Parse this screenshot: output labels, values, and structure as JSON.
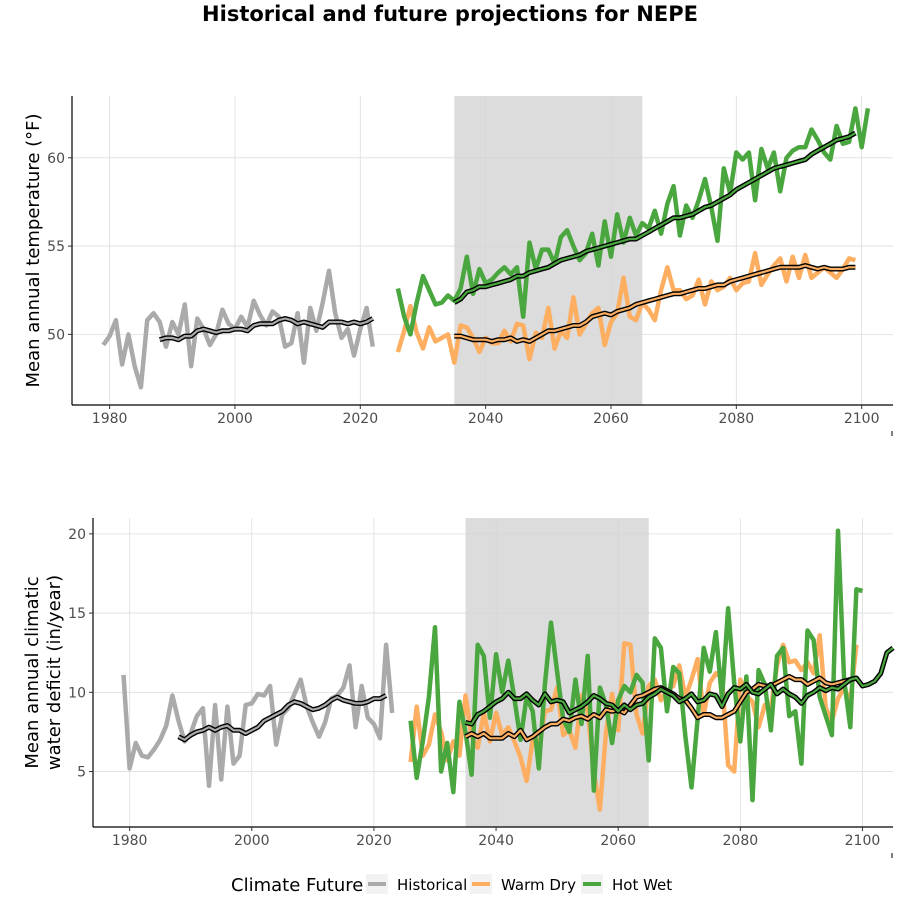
{
  "figure": {
    "title": "Historical and future projections for NEPE"
  },
  "legend": {
    "title": "Climate Future",
    "items": [
      {
        "label": "Historical",
        "color": "#aaaaaa"
      },
      {
        "label": "Warm Dry",
        "color": "#fdae61"
      },
      {
        "label": "Hot Wet",
        "color": "#4aa63e"
      }
    ]
  },
  "chart_data": [
    {
      "type": "line",
      "title": "",
      "xlabel": "",
      "ylabel": "Mean annual temperature (°F)",
      "xlim": [
        1974,
        2105
      ],
      "ylim": [
        46,
        63.5
      ],
      "xticks": [
        1980,
        2000,
        2020,
        2040,
        2060,
        2080,
        2100
      ],
      "yticks": [
        50,
        55,
        60
      ],
      "grid": true,
      "shaded_period": [
        2035,
        2065
      ],
      "series": [
        {
          "name": "Historical",
          "color": "#aaaaaa",
          "x_start": 1979,
          "values": [
            49.4,
            49.9,
            50.8,
            48.3,
            50.0,
            48.2,
            47.0,
            50.8,
            51.2,
            50.7,
            49.3,
            50.7,
            50.0,
            51.7,
            48.2,
            50.9,
            50.3,
            49.4,
            50.0,
            51.4,
            50.6,
            50.3,
            51.0,
            50.4,
            51.9,
            51.1,
            50.5,
            51.3,
            51.0,
            49.3,
            49.5,
            51.2,
            48.4,
            51.5,
            50.2,
            51.8,
            53.6,
            51.2,
            49.8,
            50.3,
            48.8,
            50.3,
            51.5,
            49.3
          ]
        },
        {
          "name": "Historical",
          "color": "#aaaaaa",
          "role": "moving-average",
          "x_start": 1988,
          "values": [
            49.7,
            49.8,
            49.8,
            49.7,
            49.9,
            49.9,
            50.2,
            50.3,
            50.2,
            50.1,
            50.2,
            50.2,
            50.3,
            50.3,
            50.2,
            50.5,
            50.6,
            50.6,
            50.6,
            50.8,
            50.9,
            50.8,
            50.6,
            50.7,
            50.6,
            50.5,
            50.4,
            50.7,
            50.7,
            50.7,
            50.6,
            50.7,
            50.6,
            50.7,
            50.9
          ]
        },
        {
          "name": "Warm Dry",
          "color": "#fdae61",
          "x_start": 2026,
          "values": [
            49.0,
            50.2,
            51.6,
            50.1,
            49.2,
            50.4,
            49.6,
            49.8,
            50.0,
            48.4,
            50.5,
            50.4,
            49.8,
            49.0,
            49.8,
            49.5,
            49.5,
            50.2,
            49.6,
            50.6,
            50.5,
            48.6,
            50.1,
            49.8,
            51.5,
            49.2,
            50.2,
            49.8,
            52.1,
            50.0,
            50.6,
            51.2,
            51.5,
            49.4,
            50.7,
            51.2,
            53.2,
            51.0,
            50.8,
            51.8,
            51.4,
            50.8,
            52.5,
            53.8,
            52.5,
            52.5,
            52.0,
            52.2,
            53.1,
            51.7,
            53.0,
            52.5,
            52.7,
            53.2,
            52.5,
            52.9,
            53.0,
            54.6,
            52.8,
            53.4,
            53.9,
            54.3,
            53.0,
            54.4,
            53.2,
            54.5,
            53.2,
            53.5,
            53.8,
            53.5,
            53.2,
            53.7,
            54.3,
            54.2
          ]
        },
        {
          "name": "Warm Dry",
          "color": "#fdae61",
          "role": "moving-average",
          "x_start": 2035,
          "values": [
            49.9,
            49.9,
            49.8,
            49.7,
            49.7,
            49.7,
            49.6,
            49.7,
            49.7,
            49.8,
            49.6,
            49.7,
            49.6,
            49.8,
            50.0,
            50.2,
            50.2,
            50.3,
            50.4,
            50.5,
            50.5,
            50.7,
            51.0,
            51.1,
            51.2,
            51.1,
            51.3,
            51.4,
            51.5,
            51.7,
            51.8,
            51.9,
            52.0,
            52.1,
            52.2,
            52.3,
            52.3,
            52.4,
            52.5,
            52.6,
            52.6,
            52.7,
            52.8,
            52.8,
            53.0,
            53.1,
            53.2,
            53.3,
            53.4,
            53.5,
            53.6,
            53.7,
            53.8,
            53.8,
            53.8,
            53.8,
            53.9,
            53.8,
            53.7,
            53.8,
            53.7,
            53.7,
            53.7,
            53.8,
            53.8
          ]
        },
        {
          "name": "Hot Wet",
          "color": "#4aa63e",
          "x_start": 2026,
          "values": [
            52.6,
            51.0,
            50.0,
            51.8,
            53.3,
            52.5,
            51.7,
            51.8,
            52.2,
            51.9,
            52.6,
            54.4,
            52.3,
            53.7,
            52.9,
            53.1,
            53.5,
            53.8,
            53.4,
            53.8,
            51.0,
            55.2,
            53.7,
            54.8,
            54.8,
            54.0,
            55.5,
            55.9,
            55.0,
            54.2,
            54.6,
            55.7,
            53.9,
            56.4,
            54.4,
            56.8,
            55.2,
            56.6,
            55.6,
            56.3,
            56.0,
            57.0,
            55.7,
            57.4,
            58.4,
            55.6,
            57.3,
            56.6,
            57.6,
            58.8,
            57.2,
            55.3,
            59.4,
            58.0,
            60.3,
            59.9,
            60.3,
            57.6,
            60.5,
            59.4,
            60.3,
            58.1,
            60.0,
            60.4,
            60.6,
            60.6,
            61.6,
            61.0,
            60.3,
            59.9,
            61.8,
            60.8,
            60.9,
            62.8,
            60.6,
            62.8
          ]
        },
        {
          "name": "Hot Wet",
          "color": "#4aa63e",
          "role": "moving-average",
          "x_start": 2035,
          "values": [
            51.8,
            52.0,
            52.4,
            52.5,
            52.7,
            52.7,
            52.8,
            52.9,
            53.0,
            53.1,
            53.3,
            53.3,
            53.5,
            53.6,
            53.7,
            53.8,
            54.0,
            54.2,
            54.3,
            54.4,
            54.5,
            54.7,
            54.8,
            54.9,
            55.0,
            55.1,
            55.2,
            55.3,
            55.4,
            55.4,
            55.6,
            55.8,
            56.0,
            56.2,
            56.4,
            56.6,
            56.6,
            56.7,
            56.8,
            57.0,
            57.2,
            57.3,
            57.5,
            57.7,
            57.9,
            58.2,
            58.4,
            58.6,
            58.8,
            59.0,
            59.2,
            59.4,
            59.5,
            59.6,
            59.7,
            59.8,
            59.9,
            60.2,
            60.4,
            60.6,
            60.8,
            61.0,
            61.1,
            61.2,
            61.4
          ]
        }
      ]
    },
    {
      "type": "line",
      "title": "",
      "xlabel": "",
      "ylabel": "Mean annual climatic water deficit (in/year)",
      "xlim": [
        1974,
        2105
      ],
      "ylim": [
        1.5,
        21
      ],
      "xticks": [
        1980,
        2000,
        2020,
        2040,
        2060,
        2080,
        2100
      ],
      "yticks": [
        5,
        10,
        15,
        20
      ],
      "grid": true,
      "shaded_period": [
        2035,
        2065
      ],
      "series": [
        {
          "name": "Historical",
          "color": "#aaaaaa",
          "x_start": 1979,
          "values": [
            11.1,
            5.2,
            6.8,
            6.0,
            5.9,
            6.4,
            7.0,
            7.9,
            9.8,
            8.2,
            6.9,
            7.4,
            8.5,
            9.0,
            4.1,
            9.2,
            4.5,
            9.1,
            5.5,
            6.0,
            9.2,
            9.3,
            9.9,
            9.8,
            10.4,
            6.7,
            8.6,
            9.0,
            9.9,
            10.8,
            9.1,
            8.1,
            7.2,
            8.1,
            9.6,
            9.8,
            10.3,
            11.7,
            7.8,
            10.4,
            8.4,
            8.0,
            7.1,
            13.0,
            8.7
          ]
        },
        {
          "name": "Historical",
          "color": "#aaaaaa",
          "role": "moving-average",
          "x_start": 1988,
          "values": [
            7.2,
            7.0,
            7.3,
            7.5,
            7.6,
            7.8,
            7.6,
            7.8,
            7.9,
            7.6,
            7.6,
            7.4,
            7.6,
            7.8,
            8.2,
            8.4,
            8.6,
            8.8,
            9.2,
            9.4,
            9.3,
            9.1,
            8.9,
            9.0,
            9.2,
            9.5,
            9.7,
            9.5,
            9.4,
            9.3,
            9.3,
            9.4,
            9.6,
            9.6,
            9.8
          ]
        },
        {
          "name": "Warm Dry",
          "color": "#fdae61",
          "x_start": 2026,
          "values": [
            5.6,
            9.1,
            6.0,
            6.7,
            8.6,
            7.5,
            5.7,
            6.9,
            6.0,
            9.8,
            7.2,
            6.5,
            8.7,
            6.9,
            8.7,
            7.3,
            7.8,
            6.9,
            5.9,
            4.4,
            7.0,
            6.5,
            8.8,
            8.9,
            10.3,
            7.3,
            7.6,
            6.5,
            9.8,
            8.8,
            5.0,
            2.6,
            7.5,
            9.9,
            7.6,
            13.1,
            13.0,
            8.6,
            7.4,
            10.4,
            10.8,
            9.5,
            10.1,
            10.4,
            11.7,
            9.7,
            10.8,
            12.1,
            8.6,
            10.6,
            11.2,
            10.9,
            5.4,
            5.0,
            10.8,
            9.8,
            9.4,
            7.8,
            9.2,
            9.0,
            11.7,
            13.0,
            11.9,
            12.0,
            11.4,
            11.9,
            11.2,
            13.6,
            9.0,
            8.2,
            9.6,
            10.3,
            9.4,
            13.0
          ]
        },
        {
          "name": "Warm Dry",
          "color": "#fdae61",
          "role": "moving-average",
          "x_start": 2035,
          "values": [
            7.2,
            7.4,
            7.2,
            7.4,
            7.1,
            7.1,
            7.1,
            7.4,
            7.2,
            7.6,
            7.0,
            7.2,
            7.5,
            7.8,
            8.0,
            8.0,
            8.3,
            8.2,
            8.4,
            8.5,
            8.3,
            8.6,
            8.4,
            8.9,
            8.8,
            8.9,
            8.7,
            9.2,
            9.7,
            9.8,
            10.0,
            10.2,
            10.3,
            10.1,
            9.9,
            9.6,
            9.5,
            9.0,
            8.4,
            8.6,
            8.6,
            8.4,
            8.4,
            8.6,
            8.8,
            9.4,
            10.0,
            10.2,
            10.5,
            10.4,
            10.4,
            10.6,
            10.8,
            11.0,
            10.8,
            10.8,
            10.5,
            10.7,
            10.9,
            10.6,
            10.5,
            10.6,
            10.7,
            10.8,
            10.9
          ]
        },
        {
          "name": "Hot Wet",
          "color": "#4aa63e",
          "x_start": 2026,
          "values": [
            8.2,
            4.6,
            6.9,
            9.7,
            14.1,
            5.0,
            6.8,
            3.7,
            9.4,
            7.5,
            4.8,
            13.0,
            12.3,
            8.4,
            12.4,
            10.0,
            12.0,
            9.6,
            7.0,
            9.7,
            8.8,
            5.2,
            10.5,
            14.4,
            11.3,
            8.3,
            7.5,
            10.8,
            8.0,
            12.3,
            3.8,
            10.3,
            9.2,
            6.8,
            9.5,
            10.4,
            10.0,
            11.1,
            10.6,
            5.7,
            13.4,
            12.8,
            8.8,
            11.6,
            11.2,
            7.2,
            4.0,
            8.3,
            12.8,
            11.3,
            13.8,
            9.6,
            15.3,
            10.6,
            6.9,
            11.0,
            3.2,
            11.4,
            10.5,
            7.6,
            12.3,
            12.8,
            8.5,
            8.8,
            5.5,
            13.9,
            13.3,
            9.7,
            8.5,
            7.3,
            20.2,
            10.8,
            7.8,
            16.5,
            16.4
          ]
        },
        {
          "name": "Hot Wet",
          "color": "#4aa63e",
          "role": "moving-average",
          "x_start": 2035,
          "values": [
            8.1,
            8.0,
            8.6,
            8.8,
            9.1,
            9.4,
            9.6,
            10.0,
            9.6,
            9.6,
            9.9,
            9.5,
            9.2,
            9.9,
            9.4,
            9.5,
            9.4,
            8.7,
            8.9,
            9.1,
            9.4,
            9.8,
            9.6,
            9.3,
            9.2,
            8.8,
            9.2,
            8.9,
            9.2,
            9.3,
            9.7,
            9.9,
            10.2,
            10.0,
            9.8,
            9.4,
            9.6,
            9.9,
            9.4,
            9.5,
            9.9,
            9.8,
            9.1,
            9.9,
            10.3,
            10.2,
            10.5,
            10.0,
            9.9,
            10.2,
            10.5,
            9.9,
            10.2,
            9.9,
            9.7,
            9.3,
            9.8,
            10.0,
            10.3,
            10.1,
            10.3,
            10.2,
            10.5,
            10.8,
            10.9,
            10.4,
            10.5,
            10.7,
            11.2,
            12.5,
            12.8
          ]
        }
      ]
    }
  ]
}
